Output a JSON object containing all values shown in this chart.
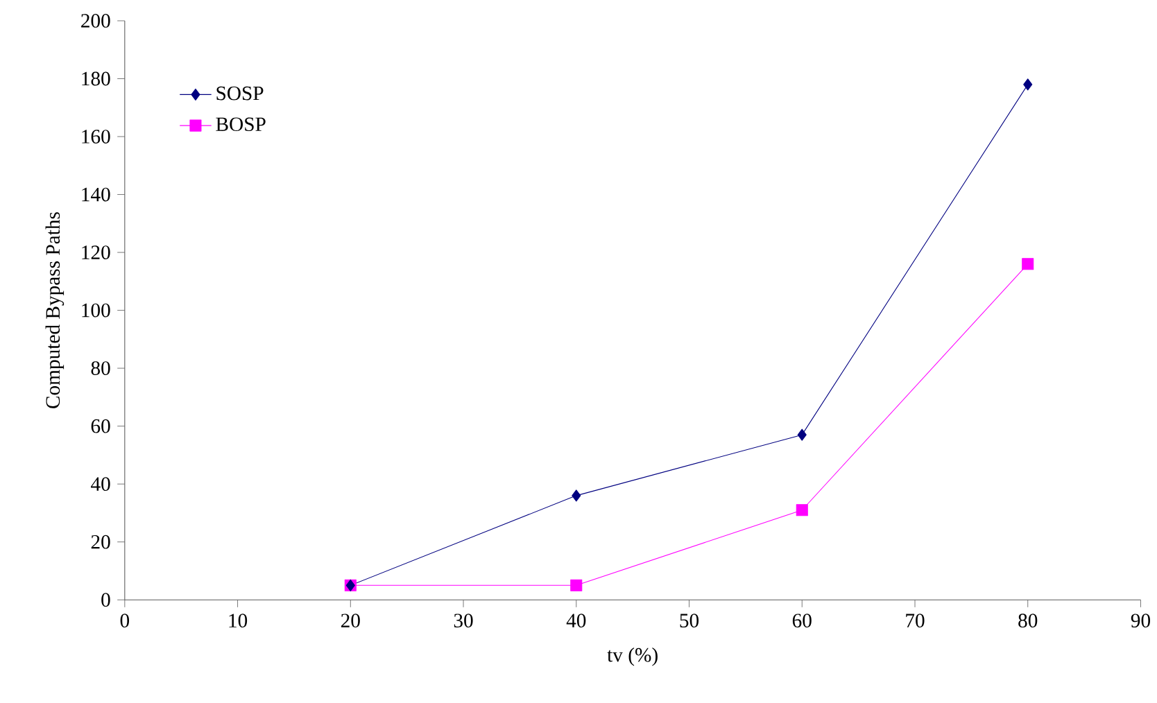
{
  "chart_data": {
    "type": "line",
    "xlabel": "tv (%)",
    "ylabel": "Computed Bypass Paths",
    "x": [
      20,
      40,
      60,
      80
    ],
    "series": [
      {
        "name": "SOSP",
        "color": "#000080",
        "marker": "diamond",
        "values": [
          5,
          36,
          57,
          178
        ]
      },
      {
        "name": "BOSP",
        "color": "#ff00ff",
        "marker": "square",
        "values": [
          5,
          5,
          31,
          116
        ]
      }
    ],
    "xlim": [
      0,
      90
    ],
    "xticks": [
      0,
      10,
      20,
      30,
      40,
      50,
      60,
      70,
      80,
      90
    ],
    "ylim": [
      0,
      200
    ],
    "yticks": [
      0,
      20,
      40,
      60,
      80,
      100,
      120,
      140,
      160,
      180,
      200
    ],
    "grid": false,
    "legend": "top left",
    "line_style": "solid"
  }
}
